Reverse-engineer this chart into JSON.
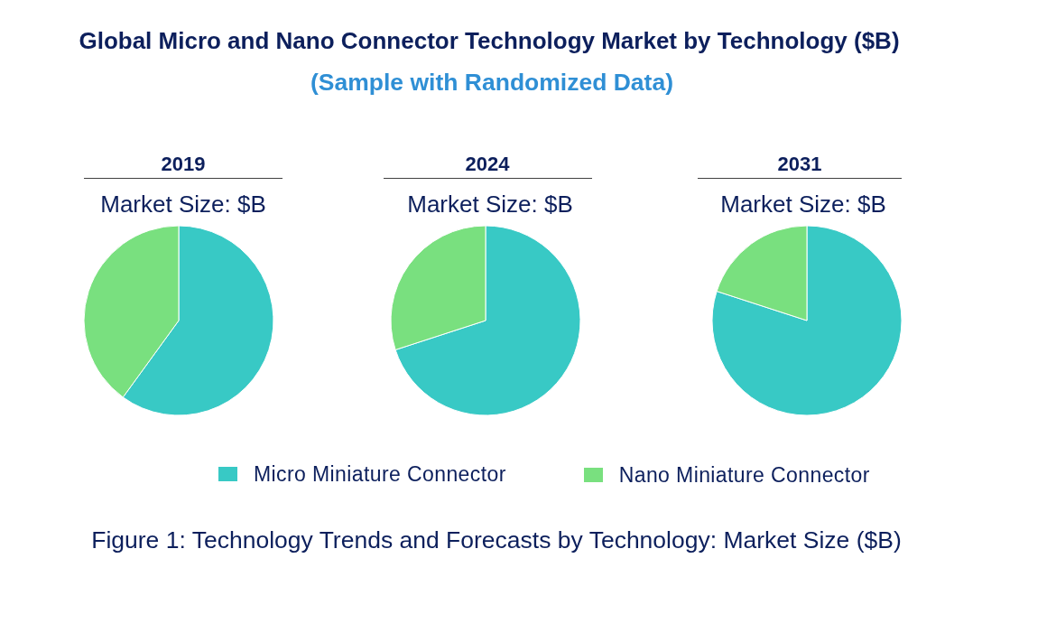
{
  "chart_data": {
    "type": "pie",
    "title": "Global Micro and Nano Connector Technology Market by Technology ($B)",
    "subtitle": "(Sample with Randomized Data)",
    "categories": [
      "Micro Miniature Connector",
      "Nano Miniature Connector"
    ],
    "colors": [
      "#38c9c5",
      "#79e07f"
    ],
    "series": [
      {
        "name": "2019",
        "values": [
          60,
          40
        ]
      },
      {
        "name": "2024",
        "values": [
          70,
          30
        ]
      },
      {
        "name": "2031",
        "values": [
          80,
          20
        ]
      }
    ],
    "legend": "bottom",
    "annotations": [
      "Market Size: $B",
      "Market Size: $B",
      "Market Size: $B",
      "Figure 1: Technology Trends and Forecasts by Technology: Market Size ($B)"
    ]
  }
}
